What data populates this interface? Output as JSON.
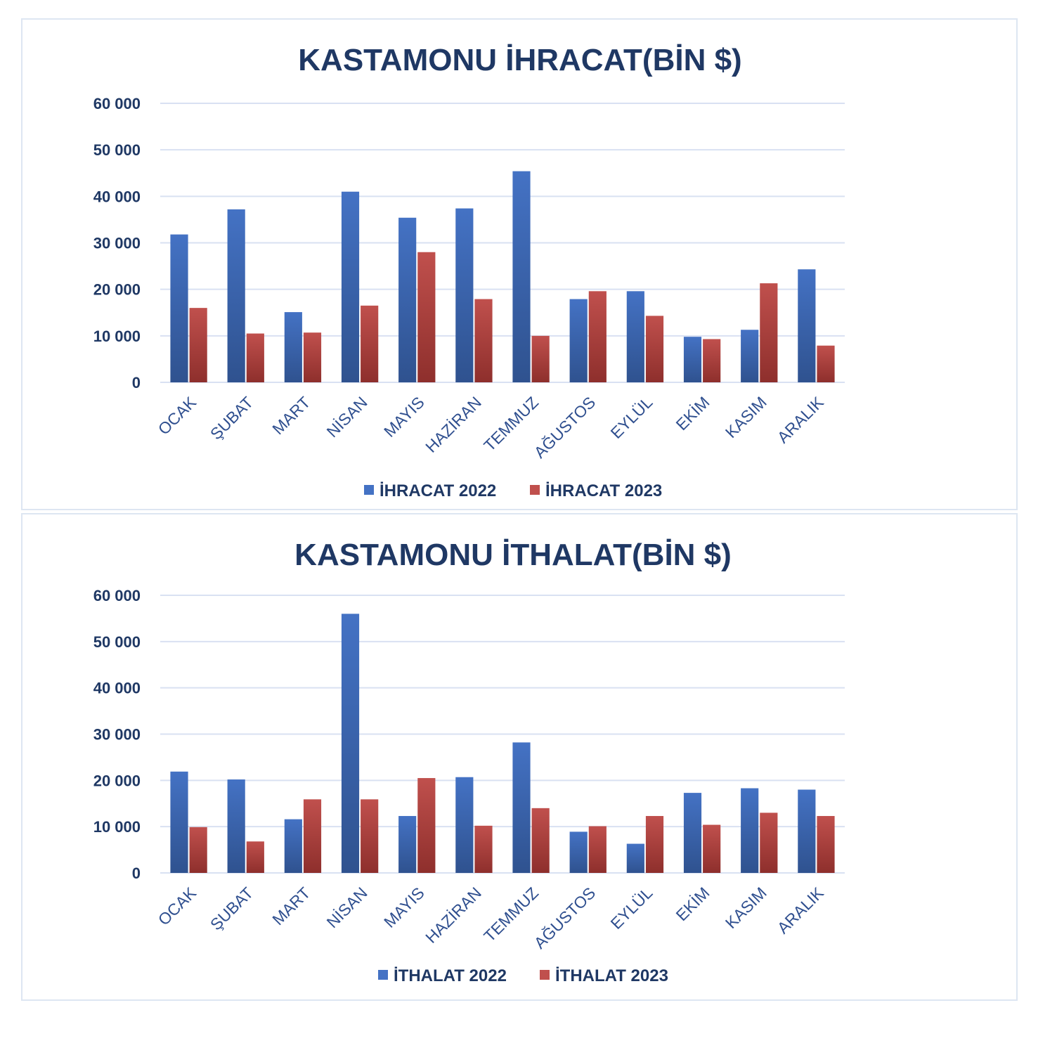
{
  "colors": {
    "series2022": "#4472c4",
    "series2023": "#c0504d",
    "grid": "#d9e1f2",
    "text": "#1f3864"
  },
  "chart_data": [
    {
      "type": "bar",
      "title": "KASTAMONU İHRACAT(BİN $)",
      "categories": [
        "OCAK",
        "ŞUBAT",
        "MART",
        "NİSAN",
        "MAYIS",
        "HAZİRAN",
        "TEMMUZ",
        "AĞUSTOS",
        "EYLÜL",
        "EKİM",
        "KASIM",
        "ARALIK"
      ],
      "series": [
        {
          "name": "İHRACAT 2022",
          "values": [
            31800,
            37200,
            15100,
            41000,
            35400,
            37400,
            45400,
            17900,
            19600,
            9800,
            11300,
            24300
          ]
        },
        {
          "name": "İHRACAT 2023",
          "values": [
            16000,
            10500,
            10700,
            16500,
            28000,
            17900,
            10000,
            19600,
            14300,
            9300,
            21300,
            7900
          ]
        }
      ],
      "yticks": [
        "0",
        "10 000",
        "20 000",
        "30 000",
        "40 000",
        "50 000",
        "60 000"
      ],
      "ylim": [
        0,
        60000
      ],
      "grid": true,
      "legend": "bottom"
    },
    {
      "type": "bar",
      "title": "KASTAMONU İTHALAT(BİN $)",
      "categories": [
        "OCAK",
        "ŞUBAT",
        "MART",
        "NİSAN",
        "MAYIS",
        "HAZİRAN",
        "TEMMUZ",
        "AĞUSTOS",
        "EYLÜL",
        "EKİM",
        "KASIM",
        "ARALIK"
      ],
      "series": [
        {
          "name": "İTHALAT 2022",
          "values": [
            21900,
            20200,
            11600,
            56000,
            12300,
            20700,
            28200,
            8900,
            6300,
            17300,
            18300,
            18000
          ]
        },
        {
          "name": "İTHALAT 2023",
          "values": [
            9900,
            6800,
            15900,
            15900,
            20500,
            10200,
            14000,
            10100,
            12300,
            10400,
            13000,
            12300
          ]
        }
      ],
      "yticks": [
        "0",
        "10 000",
        "20 000",
        "30 000",
        "40 000",
        "50 000",
        "60 000"
      ],
      "ylim": [
        0,
        60000
      ],
      "grid": true,
      "legend": "bottom"
    }
  ]
}
